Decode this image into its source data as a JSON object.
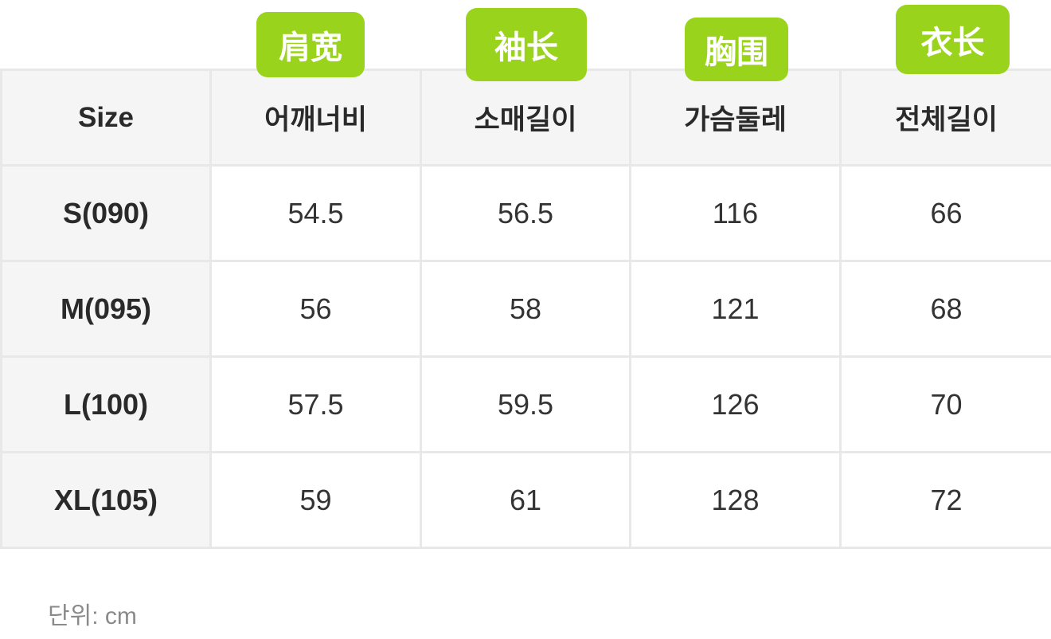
{
  "badges": [
    "肩宽",
    "袖长",
    "胸围",
    "衣长"
  ],
  "badge_color": "#9ad31c",
  "table": {
    "headers": [
      "Size",
      "어깨너비",
      "소매길이",
      "가슴둘레",
      "전체길이"
    ],
    "rows": [
      [
        "S(090)",
        "54.5",
        "56.5",
        "116",
        "66"
      ],
      [
        "M(095)",
        "56",
        "58",
        "121",
        "68"
      ],
      [
        "L(100)",
        "57.5",
        "59.5",
        "126",
        "70"
      ],
      [
        "XL(105)",
        "59",
        "61",
        "128",
        "72"
      ]
    ]
  },
  "unit_note": "단위: cm"
}
